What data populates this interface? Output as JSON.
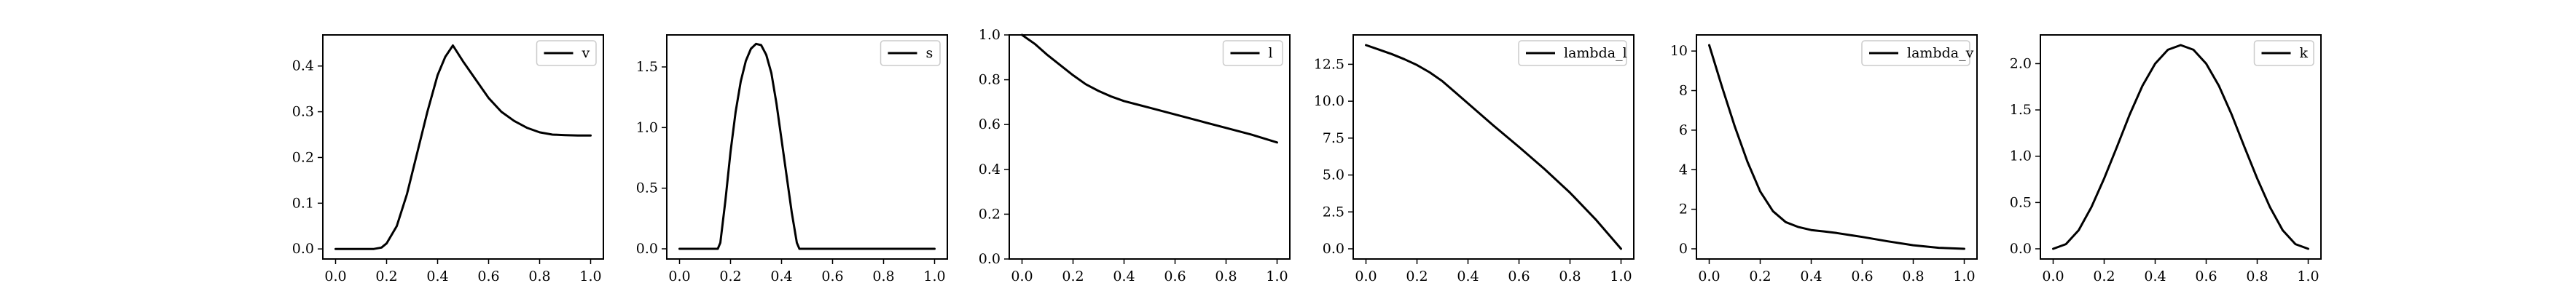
{
  "figure": {
    "background": "#ffffff",
    "line_color": "#000000"
  },
  "chart_data": [
    {
      "type": "line",
      "xlim": [
        -0.05,
        1.05
      ],
      "ylim": [
        -0.022,
        0.468
      ],
      "xticks": [
        0.0,
        0.2,
        0.4,
        0.6,
        0.8,
        1.0
      ],
      "xtick_labels": [
        "0.0",
        "0.2",
        "0.4",
        "0.6",
        "0.8",
        "1.0"
      ],
      "yticks": [
        0.0,
        0.1,
        0.2,
        0.3,
        0.4
      ],
      "ytick_labels": [
        "0.0",
        "0.1",
        "0.2",
        "0.3",
        "0.4"
      ],
      "legend": "upper right",
      "series": [
        {
          "name": "v",
          "x": [
            0.0,
            0.05,
            0.1,
            0.15,
            0.18,
            0.2,
            0.24,
            0.28,
            0.32,
            0.36,
            0.4,
            0.43,
            0.46,
            0.5,
            0.55,
            0.6,
            0.65,
            0.7,
            0.75,
            0.8,
            0.85,
            0.9,
            0.95,
            1.0
          ],
          "y": [
            0.0,
            0.0,
            0.0,
            0.0,
            0.003,
            0.012,
            0.05,
            0.12,
            0.21,
            0.3,
            0.38,
            0.42,
            0.445,
            0.41,
            0.37,
            0.33,
            0.3,
            0.28,
            0.265,
            0.255,
            0.25,
            0.249,
            0.248,
            0.248
          ]
        }
      ]
    },
    {
      "type": "line",
      "xlim": [
        -0.05,
        1.05
      ],
      "ylim": [
        -0.084,
        1.764
      ],
      "xticks": [
        0.0,
        0.2,
        0.4,
        0.6,
        0.8,
        1.0
      ],
      "xtick_labels": [
        "0.0",
        "0.2",
        "0.4",
        "0.6",
        "0.8",
        "1.0"
      ],
      "yticks": [
        0.0,
        0.5,
        1.0,
        1.5
      ],
      "ytick_labels": [
        "0.0",
        "0.5",
        "1.0",
        "1.5"
      ],
      "legend": "upper right",
      "series": [
        {
          "name": "s",
          "x": [
            0.0,
            0.05,
            0.1,
            0.15,
            0.16,
            0.18,
            0.2,
            0.22,
            0.24,
            0.26,
            0.28,
            0.3,
            0.32,
            0.34,
            0.36,
            0.38,
            0.4,
            0.42,
            0.44,
            0.46,
            0.47,
            0.5,
            0.6,
            0.7,
            0.8,
            0.9,
            1.0
          ],
          "y": [
            0.0,
            0.0,
            0.0,
            0.0,
            0.05,
            0.4,
            0.8,
            1.13,
            1.38,
            1.55,
            1.65,
            1.69,
            1.68,
            1.6,
            1.45,
            1.2,
            0.9,
            0.6,
            0.3,
            0.05,
            0.0,
            0.0,
            0.0,
            0.0,
            0.0,
            0.0,
            0.0
          ]
        }
      ]
    },
    {
      "type": "line",
      "xlim": [
        -0.05,
        1.05
      ],
      "ylim": [
        0.0,
        1.0
      ],
      "xticks": [
        0.0,
        0.2,
        0.4,
        0.6,
        0.8,
        1.0
      ],
      "xtick_labels": [
        "0.0",
        "0.2",
        "0.4",
        "0.6",
        "0.8",
        "1.0"
      ],
      "yticks": [
        0.0,
        0.2,
        0.4,
        0.6,
        0.8,
        1.0
      ],
      "ytick_labels": [
        "0.0",
        "0.2",
        "0.4",
        "0.6",
        "0.8",
        "1.0"
      ],
      "legend": "upper right",
      "series": [
        {
          "name": "l",
          "x": [
            0.0,
            0.05,
            0.1,
            0.15,
            0.2,
            0.25,
            0.3,
            0.35,
            0.4,
            0.45,
            0.5,
            0.6,
            0.7,
            0.8,
            0.9,
            1.0
          ],
          "y": [
            1.0,
            0.96,
            0.91,
            0.865,
            0.82,
            0.78,
            0.75,
            0.725,
            0.705,
            0.69,
            0.675,
            0.645,
            0.615,
            0.585,
            0.555,
            0.52
          ]
        }
      ]
    },
    {
      "type": "line",
      "xlim": [
        -0.05,
        1.05
      ],
      "ylim": [
        -0.69,
        14.49
      ],
      "xticks": [
        0.0,
        0.2,
        0.4,
        0.6,
        0.8,
        1.0
      ],
      "xtick_labels": [
        "0.0",
        "0.2",
        "0.4",
        "0.6",
        "0.8",
        "1.0"
      ],
      "yticks": [
        0.0,
        2.5,
        5.0,
        7.5,
        10.0,
        12.5
      ],
      "ytick_labels": [
        "0.0",
        "2.5",
        "5.0",
        "7.5",
        "10.0",
        "12.5"
      ],
      "legend": "upper right",
      "series": [
        {
          "name": "lambda_l",
          "x": [
            0.0,
            0.05,
            0.1,
            0.15,
            0.2,
            0.25,
            0.3,
            0.35,
            0.4,
            0.45,
            0.5,
            0.6,
            0.7,
            0.8,
            0.9,
            1.0
          ],
          "y": [
            13.8,
            13.5,
            13.2,
            12.85,
            12.45,
            11.95,
            11.35,
            10.6,
            9.85,
            9.1,
            8.35,
            6.9,
            5.4,
            3.8,
            2.0,
            0.0
          ]
        }
      ]
    },
    {
      "type": "line",
      "xlim": [
        -0.05,
        1.05
      ],
      "ylim": [
        -0.515,
        10.815
      ],
      "xticks": [
        0.0,
        0.2,
        0.4,
        0.6,
        0.8,
        1.0
      ],
      "xtick_labels": [
        "0.0",
        "0.2",
        "0.4",
        "0.6",
        "0.8",
        "1.0"
      ],
      "yticks": [
        0,
        2,
        4,
        6,
        8,
        10
      ],
      "ytick_labels": [
        "0",
        "2",
        "4",
        "6",
        "8",
        "10"
      ],
      "legend": "upper right",
      "series": [
        {
          "name": "lambda_v",
          "x": [
            0.0,
            0.05,
            0.1,
            0.15,
            0.2,
            0.25,
            0.3,
            0.35,
            0.4,
            0.45,
            0.5,
            0.55,
            0.6,
            0.7,
            0.8,
            0.9,
            1.0
          ],
          "y": [
            10.3,
            8.2,
            6.2,
            4.4,
            2.9,
            1.9,
            1.35,
            1.1,
            0.95,
            0.88,
            0.8,
            0.7,
            0.6,
            0.38,
            0.18,
            0.05,
            0.0
          ]
        }
      ]
    },
    {
      "type": "line",
      "xlim": [
        -0.05,
        1.05
      ],
      "ylim": [
        -0.11,
        2.31
      ],
      "xticks": [
        0.0,
        0.2,
        0.4,
        0.6,
        0.8,
        1.0
      ],
      "xtick_labels": [
        "0.0",
        "0.2",
        "0.4",
        "0.6",
        "0.8",
        "1.0"
      ],
      "yticks": [
        0.0,
        0.5,
        1.0,
        1.5,
        2.0
      ],
      "ytick_labels": [
        "0.0",
        "0.5",
        "1.0",
        "1.5",
        "2.0"
      ],
      "legend": "upper right",
      "series": [
        {
          "name": "k",
          "x": [
            0.0,
            0.05,
            0.1,
            0.15,
            0.2,
            0.25,
            0.3,
            0.35,
            0.4,
            0.45,
            0.5,
            0.55,
            0.6,
            0.65,
            0.7,
            0.75,
            0.8,
            0.85,
            0.9,
            0.95,
            1.0
          ],
          "y": [
            0.0,
            0.05,
            0.2,
            0.45,
            0.76,
            1.1,
            1.45,
            1.76,
            2.0,
            2.15,
            2.2,
            2.15,
            2.0,
            1.76,
            1.45,
            1.1,
            0.76,
            0.45,
            0.2,
            0.05,
            0.0
          ]
        }
      ]
    }
  ]
}
